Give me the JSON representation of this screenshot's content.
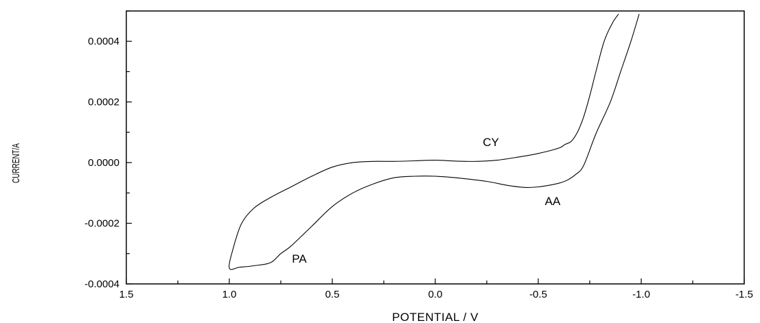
{
  "chart_data": {
    "type": "line",
    "xlabel": "POTENTIAL / V",
    "ylabel": "CURRENT/A",
    "xlim": [
      1.5,
      -1.5
    ],
    "ylim": [
      -0.0004,
      0.0005
    ],
    "x_ticks": [
      1.5,
      1.0,
      0.5,
      0.0,
      -0.5,
      -1.0,
      -1.5
    ],
    "x_tick_labels": [
      "1.5",
      "1.0",
      "0.5",
      "0.0",
      "-0.5",
      "-1.0",
      "-1.5"
    ],
    "y_ticks": [
      -0.0004,
      -0.0002,
      0.0,
      0.0002,
      0.0004
    ],
    "y_tick_labels": [
      "-0.0004",
      "-0.0002",
      "0.0000",
      "0.0002",
      "0.0004"
    ],
    "grid": false,
    "series": [
      {
        "x": [
          -0.99,
          -0.95,
          -0.9,
          -0.85,
          -0.78,
          -0.72,
          -0.68,
          -0.64,
          -0.6,
          -0.55,
          -0.5,
          -0.44,
          -0.35,
          -0.25,
          -0.1,
          0.0,
          0.1,
          0.2,
          0.3,
          0.4,
          0.5,
          0.6,
          0.7,
          0.75,
          0.8,
          0.88,
          0.95,
          1.0,
          0.98,
          0.94,
          0.88,
          0.8,
          0.7,
          0.6,
          0.5,
          0.4,
          0.3,
          0.2,
          0.1,
          0.0,
          -0.1,
          -0.2,
          -0.3,
          -0.4,
          -0.5,
          -0.6,
          -0.63,
          -0.66,
          -0.69,
          -0.72,
          -0.75,
          -0.78,
          -0.82,
          -0.86,
          -0.89
        ],
        "y": [
          0.00049,
          0.0004,
          0.0003,
          0.0002,
          9.5e-05,
          -1e-05,
          -4e-05,
          -5.8e-05,
          -6.8e-05,
          -7.5e-05,
          -8e-05,
          -8.2e-05,
          -7.5e-05,
          -6.2e-05,
          -5e-05,
          -4.5e-05,
          -4.5e-05,
          -5e-05,
          -7e-05,
          -0.0001,
          -0.000145,
          -0.00021,
          -0.000275,
          -0.0003,
          -0.00033,
          -0.00034,
          -0.000345,
          -0.000348,
          -0.00028,
          -0.0002,
          -0.00015,
          -0.000115,
          -8e-05,
          -4.5e-05,
          -1.5e-05,
          0.0,
          4e-06,
          4e-06,
          6e-06,
          8e-06,
          5e-06,
          4e-06,
          8e-06,
          1.8e-05,
          3e-05,
          4.8e-05,
          6e-05,
          7e-05,
          0.0001,
          0.00015,
          0.00022,
          0.0003,
          0.0004,
          0.00046,
          0.00049
        ]
      }
    ],
    "annotations": [
      {
        "text": "CY",
        "x": -0.27,
        "y": 5.5e-05
      },
      {
        "text": "AA",
        "x": -0.57,
        "y": -0.00014
      },
      {
        "text": "PA",
        "x": 0.66,
        "y": -0.00033
      }
    ]
  }
}
